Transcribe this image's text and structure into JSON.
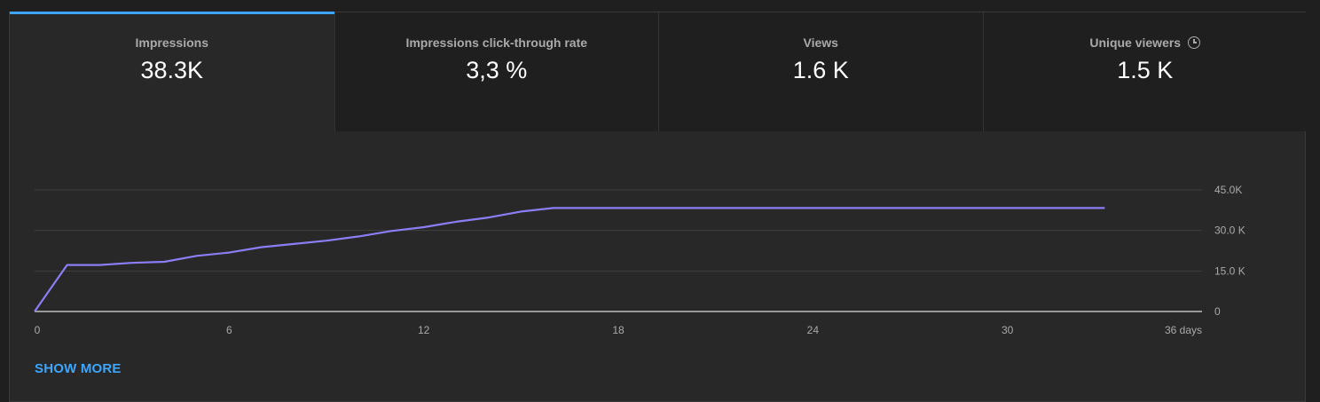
{
  "tabs": [
    {
      "label": "Impressions",
      "value": "38.3K",
      "active": true
    },
    {
      "label": "Impressions click-through rate",
      "value": "3,3 %",
      "active": false
    },
    {
      "label": "Views",
      "value": "1.6 K",
      "active": false
    },
    {
      "label": "Unique viewers",
      "value": "1.5 K",
      "active": false,
      "icon": "clock-icon"
    }
  ],
  "show_more": "SHOW MORE",
  "colors": {
    "accent": "#3ea6ff",
    "line": "#8b7ef5",
    "background": "#282828"
  },
  "chart_data": {
    "type": "line",
    "x": [
      0,
      1,
      2,
      3,
      4,
      5,
      6,
      7,
      8,
      9,
      10,
      11,
      12,
      13,
      14,
      15,
      16,
      17,
      18,
      19,
      20,
      21,
      22,
      23,
      24,
      25,
      26,
      27,
      28,
      29,
      30,
      31,
      32,
      33
    ],
    "series": [
      {
        "values": [
          0,
          17200,
          17200,
          18000,
          18400,
          20600,
          21800,
          23800,
          25000,
          26200,
          27800,
          29800,
          31200,
          33200,
          34800,
          37000,
          38300,
          38300,
          38300,
          38300,
          38300,
          38300,
          38300,
          38300,
          38300,
          38300,
          38300,
          38300,
          38300,
          38300,
          38300,
          38300,
          38300,
          38300
        ]
      }
    ],
    "xlim": [
      0,
      36
    ],
    "ylim": [
      0,
      45000
    ],
    "x_ticks": [
      "0",
      "6",
      "12",
      "18",
      "24",
      "30",
      "36 days"
    ],
    "y_ticks": [
      "0",
      "15.0 K",
      "30.0 K",
      "45.0K"
    ],
    "grid": true,
    "y_axis_side": "right"
  }
}
